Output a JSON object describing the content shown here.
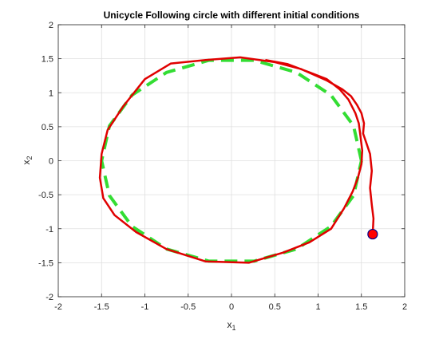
{
  "figure": {
    "title": "Unicycle Following circle with different initial conditions"
  },
  "chart_data": {
    "type": "line",
    "title": "Unicycle Following circle with different initial conditions",
    "xlabel": "x",
    "xlabel_sub": "1",
    "ylabel": "x",
    "ylabel_sub": "2",
    "xlim": [
      -2,
      2
    ],
    "ylim": [
      -2,
      2
    ],
    "xticks": [
      -2,
      -1.5,
      -1,
      -0.5,
      0,
      0.5,
      1,
      1.5,
      2
    ],
    "yticks": [
      -2,
      -1.5,
      -1,
      -0.5,
      0,
      0.5,
      1,
      1.5,
      2
    ],
    "xtick_labels": [
      "-2",
      "-1.5",
      "-1",
      "-0.5",
      "0",
      "0.5",
      "1",
      "1.5",
      "2"
    ],
    "ytick_labels": [
      "-2",
      "-1.5",
      "-1",
      "-0.5",
      "0",
      "0.5",
      "1",
      "1.5",
      "2"
    ],
    "grid": true,
    "series": [
      {
        "style": "dashed",
        "color": "#33dd33",
        "x": [
          1.5,
          1.4095,
          1.1491,
          0.75,
          0.2605,
          -0.2605,
          -0.75,
          -1.1491,
          -1.4095,
          -1.5,
          -1.4095,
          -1.1491,
          -0.75,
          -0.2605,
          0.2605,
          0.75,
          1.1491,
          1.4095,
          1.5
        ],
        "y": [
          0,
          0.513,
          0.9642,
          1.299,
          1.4772,
          1.4772,
          1.299,
          0.9642,
          0.513,
          0,
          -0.513,
          -0.9642,
          -1.299,
          -1.4772,
          -1.4772,
          -1.299,
          -0.9642,
          -0.513,
          0
        ]
      },
      {
        "style": "solid",
        "color": "#e00000",
        "x": [
          1.63,
          1.64,
          1.62,
          1.6,
          1.62,
          1.6,
          1.56,
          1.52,
          1.53,
          1.5,
          1.45,
          1.38,
          1.28,
          1.1,
          0.8,
          0.5,
          0.1,
          -0.3,
          -0.7,
          -1.0,
          -1.25,
          -1.43,
          -1.5,
          -1.52,
          -1.48,
          -1.35,
          -1.1,
          -0.75,
          -0.3,
          0.2,
          0.6,
          0.9,
          1.15,
          1.3,
          1.4,
          1.46,
          1.5,
          1.51,
          1.49,
          1.47,
          1.43,
          1.35,
          1.25,
          1.1,
          0.9,
          0.65,
          0.4
        ],
        "y": [
          -1.08,
          -0.85,
          -0.65,
          -0.4,
          -0.15,
          0.1,
          0.25,
          0.4,
          0.55,
          0.7,
          0.82,
          0.95,
          1.05,
          1.18,
          1.35,
          1.45,
          1.52,
          1.48,
          1.43,
          1.2,
          0.8,
          0.45,
          0.1,
          -0.25,
          -0.55,
          -0.8,
          -1.05,
          -1.3,
          -1.48,
          -1.5,
          -1.35,
          -1.2,
          -1.0,
          -0.7,
          -0.45,
          -0.25,
          -0.05,
          0.15,
          0.35,
          0.55,
          0.7,
          0.9,
          1.05,
          1.2,
          1.3,
          1.42,
          1.48
        ]
      }
    ],
    "marker": {
      "x": 1.63,
      "y": -1.08,
      "fill": "#ff0000",
      "edge": "#00008b"
    }
  }
}
